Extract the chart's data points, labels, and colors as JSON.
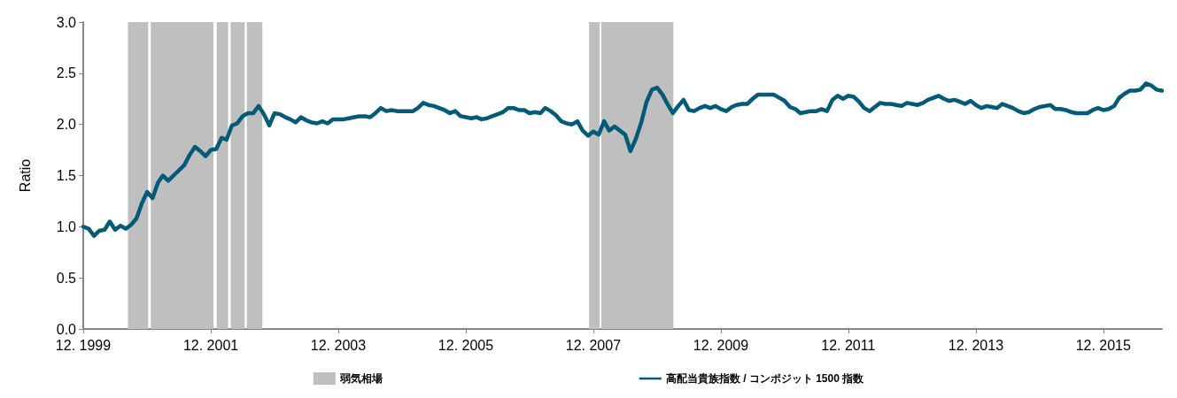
{
  "chart_data": {
    "type": "line",
    "ylabel": "Ratio",
    "x": [
      "1999-12",
      "2000-01",
      "2000-02",
      "2000-03",
      "2000-04",
      "2000-05",
      "2000-06",
      "2000-07",
      "2000-08",
      "2000-09",
      "2000-10",
      "2000-11",
      "2000-12",
      "2001-01",
      "2001-02",
      "2001-03",
      "2001-04",
      "2001-05",
      "2001-06",
      "2001-07",
      "2001-08",
      "2001-09",
      "2001-10",
      "2001-11",
      "2001-12",
      "2002-01",
      "2002-02",
      "2002-03",
      "2002-04",
      "2002-05",
      "2002-06",
      "2002-07",
      "2002-08",
      "2002-09",
      "2002-10",
      "2002-11",
      "2002-12",
      "2003-01",
      "2003-02",
      "2003-03",
      "2003-04",
      "2003-05",
      "2003-06",
      "2003-07",
      "2003-08",
      "2003-09",
      "2003-10",
      "2003-11",
      "2003-12",
      "2004-01",
      "2004-02",
      "2004-03",
      "2004-04",
      "2004-05",
      "2004-06",
      "2004-07",
      "2004-08",
      "2004-09",
      "2004-10",
      "2004-11",
      "2004-12",
      "2005-01",
      "2005-02",
      "2005-03",
      "2005-04",
      "2005-05",
      "2005-06",
      "2005-07",
      "2005-08",
      "2005-09",
      "2005-10",
      "2005-11",
      "2005-12",
      "2006-01",
      "2006-02",
      "2006-03",
      "2006-04",
      "2006-05",
      "2006-06",
      "2006-07",
      "2006-08",
      "2006-09",
      "2006-10",
      "2006-11",
      "2006-12",
      "2007-01",
      "2007-02",
      "2007-03",
      "2007-04",
      "2007-05",
      "2007-06",
      "2007-07",
      "2007-08",
      "2007-09",
      "2007-10",
      "2007-11",
      "2007-12",
      "2008-01",
      "2008-02",
      "2008-03",
      "2008-04",
      "2008-05",
      "2008-06",
      "2008-07",
      "2008-08",
      "2008-09",
      "2008-10",
      "2008-11",
      "2008-12",
      "2009-01",
      "2009-02",
      "2009-03",
      "2009-04",
      "2009-05",
      "2009-06",
      "2009-07",
      "2009-08",
      "2009-09",
      "2009-10",
      "2009-11",
      "2009-12",
      "2010-01",
      "2010-02",
      "2010-03",
      "2010-04",
      "2010-05",
      "2010-06",
      "2010-07",
      "2010-08",
      "2010-09",
      "2010-10",
      "2010-11",
      "2010-12",
      "2011-01",
      "2011-02",
      "2011-03",
      "2011-04",
      "2011-05",
      "2011-06",
      "2011-07",
      "2011-08",
      "2011-09",
      "2011-10",
      "2011-11",
      "2011-12",
      "2012-01",
      "2012-02",
      "2012-03",
      "2012-04",
      "2012-05",
      "2012-06",
      "2012-07",
      "2012-08",
      "2012-09",
      "2012-10",
      "2012-11",
      "2012-12",
      "2013-01",
      "2013-02",
      "2013-03",
      "2013-04",
      "2013-05",
      "2013-06",
      "2013-07",
      "2013-08",
      "2013-09",
      "2013-10",
      "2013-11",
      "2013-12",
      "2014-01",
      "2014-02",
      "2014-03",
      "2014-04",
      "2014-05",
      "2014-06",
      "2014-07",
      "2014-08",
      "2014-09",
      "2014-10",
      "2014-11",
      "2014-12",
      "2015-01",
      "2015-02",
      "2015-03",
      "2015-04",
      "2015-05",
      "2015-06",
      "2015-07",
      "2015-08",
      "2015-09",
      "2015-10",
      "2015-11",
      "2015-12",
      "2016-01",
      "2016-02",
      "2016-03",
      "2016-04",
      "2016-05",
      "2016-06",
      "2016-07",
      "2016-08",
      "2016-09",
      "2016-10",
      "2016-11"
    ],
    "series": [
      {
        "name": "高配当貴族指数 / コンポジット 1500 指数",
        "color": "#005a78",
        "values": [
          1.0,
          0.98,
          0.91,
          0.96,
          0.97,
          1.05,
          0.97,
          1.01,
          0.98,
          1.02,
          1.08,
          1.23,
          1.34,
          1.28,
          1.43,
          1.5,
          1.45,
          1.5,
          1.55,
          1.6,
          1.7,
          1.78,
          1.74,
          1.69,
          1.75,
          1.76,
          1.87,
          1.85,
          1.99,
          2.01,
          2.08,
          2.11,
          2.11,
          2.18,
          2.1,
          1.99,
          2.11,
          2.1,
          2.07,
          2.05,
          2.02,
          2.07,
          2.04,
          2.02,
          2.01,
          2.03,
          2.01,
          2.05,
          2.05,
          2.05,
          2.06,
          2.07,
          2.08,
          2.08,
          2.07,
          2.11,
          2.16,
          2.13,
          2.14,
          2.13,
          2.13,
          2.13,
          2.13,
          2.16,
          2.21,
          2.19,
          2.18,
          2.16,
          2.14,
          2.11,
          2.13,
          2.08,
          2.07,
          2.06,
          2.07,
          2.05,
          2.06,
          2.08,
          2.1,
          2.12,
          2.16,
          2.16,
          2.14,
          2.14,
          2.11,
          2.12,
          2.11,
          2.16,
          2.13,
          2.09,
          2.03,
          2.01,
          2.0,
          2.03,
          1.94,
          1.89,
          1.93,
          1.9,
          2.03,
          1.94,
          1.98,
          1.94,
          1.9,
          1.74,
          1.86,
          2.02,
          2.22,
          2.34,
          2.36,
          2.29,
          2.19,
          2.11,
          2.18,
          2.24,
          2.14,
          2.13,
          2.16,
          2.18,
          2.16,
          2.18,
          2.15,
          2.13,
          2.17,
          2.19,
          2.2,
          2.2,
          2.25,
          2.29,
          2.29,
          2.29,
          2.29,
          2.26,
          2.23,
          2.17,
          2.15,
          2.11,
          2.12,
          2.13,
          2.13,
          2.15,
          2.13,
          2.24,
          2.28,
          2.25,
          2.28,
          2.27,
          2.22,
          2.16,
          2.13,
          2.17,
          2.21,
          2.2,
          2.2,
          2.19,
          2.18,
          2.21,
          2.2,
          2.19,
          2.21,
          2.24,
          2.26,
          2.28,
          2.25,
          2.23,
          2.24,
          2.22,
          2.2,
          2.23,
          2.19,
          2.16,
          2.18,
          2.17,
          2.16,
          2.2,
          2.18,
          2.16,
          2.13,
          2.11,
          2.12,
          2.15,
          2.17,
          2.18,
          2.19,
          2.15,
          2.15,
          2.14,
          2.12,
          2.11,
          2.11,
          2.11,
          2.14,
          2.16,
          2.14,
          2.15,
          2.18,
          2.26,
          2.3,
          2.33,
          2.33,
          2.34,
          2.4,
          2.38,
          2.34,
          2.33
        ]
      }
    ],
    "bands": [
      {
        "axis": "x",
        "from": "2000-08-13",
        "to": "2000-12-07",
        "label": "弱気相場",
        "color": "#bfbfbf"
      },
      {
        "axis": "x",
        "from": "2000-12-22",
        "to": "2001-12-16",
        "color": "#bfbfbf"
      },
      {
        "axis": "x",
        "from": "2002-01-04",
        "to": "2002-03-10",
        "color": "#bfbfbf"
      },
      {
        "axis": "x",
        "from": "2002-03-25",
        "to": "2002-06-13",
        "color": "#bfbfbf"
      },
      {
        "axis": "x",
        "from": "2002-06-25",
        "to": "2002-09-22",
        "color": "#bfbfbf"
      },
      {
        "axis": "x",
        "from": "2007-11-07",
        "to": "2008-01-07",
        "color": "#bfbfbf"
      },
      {
        "axis": "x",
        "from": "2008-01-16",
        "to": "2009-03-04",
        "color": "#bfbfbf"
      }
    ],
    "xlim": [
      "1999-12",
      "2016-11"
    ],
    "xticks": [
      {
        "value": "1999-12",
        "label": "12. 1999"
      },
      {
        "value": "2001-12",
        "label": "12. 2001"
      },
      {
        "value": "2003-12",
        "label": "12. 2003"
      },
      {
        "value": "2005-12",
        "label": "12. 2005"
      },
      {
        "value": "2007-12",
        "label": "12. 2007"
      },
      {
        "value": "2009-12",
        "label": "12. 2009"
      },
      {
        "value": "2011-12",
        "label": "12. 2011"
      },
      {
        "value": "2013-12",
        "label": "12. 2013"
      },
      {
        "value": "2015-12",
        "label": "12. 2015"
      }
    ],
    "ylim": [
      0,
      3
    ],
    "yticks": [
      {
        "value": 0,
        "label": "0.0"
      },
      0.5,
      {
        "value": 1,
        "label": "1.0"
      },
      1.5,
      {
        "value": 2,
        "label": "2.0"
      },
      2.5,
      {
        "value": 3,
        "label": "3.0"
      }
    ],
    "legend": "bottom",
    "marker": "none",
    "line_style": "solid"
  }
}
